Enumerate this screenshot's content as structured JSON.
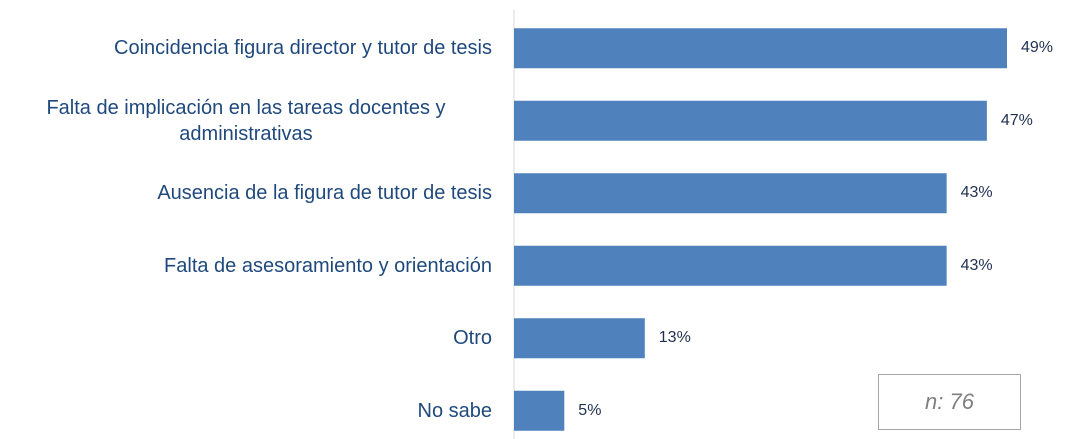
{
  "chart_data": {
    "type": "bar",
    "orientation": "horizontal",
    "categories": [
      "Coincidencia figura director y tutor de tesis",
      "Falta de implicación en las tareas docentes y administrativas",
      "Ausencia de la figura de tutor de tesis",
      "Falta de asesoramiento y orientación",
      "Otro",
      "No sabe"
    ],
    "values": [
      49,
      47,
      43,
      43,
      13,
      5
    ],
    "value_labels": [
      "49%",
      "47%",
      "43%",
      "43%",
      "13%",
      "5%"
    ],
    "color": "#4f81bd",
    "annotation": "n: 76"
  }
}
